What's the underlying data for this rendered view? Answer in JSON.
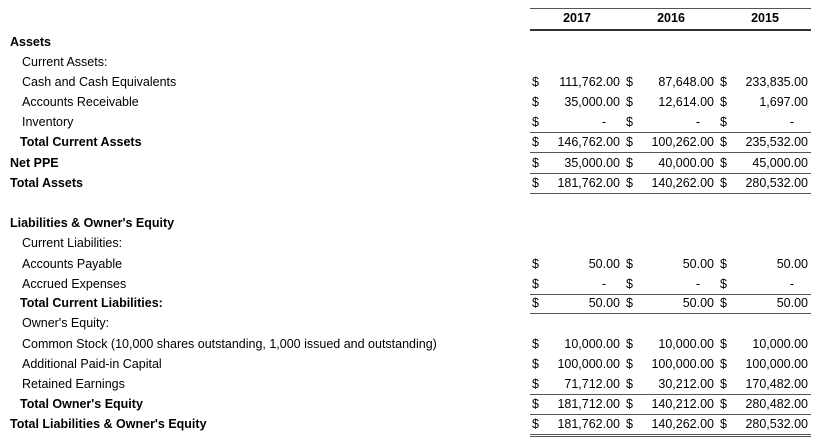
{
  "currency_symbol": "$",
  "columns": [
    "2017",
    "2016",
    "2015"
  ],
  "rows": [
    {
      "label": "Assets",
      "values": null
    },
    {
      "label": "Current Assets:",
      "values": null
    },
    {
      "label": "Cash and Cash Equivalents",
      "values": [
        "111,762.00",
        "87,648.00",
        "233,835.00"
      ]
    },
    {
      "label": "Accounts Receivable",
      "values": [
        "35,000.00",
        "12,614.00",
        "1,697.00"
      ]
    },
    {
      "label": "Inventory",
      "values": [
        "-",
        "-",
        "-"
      ]
    },
    {
      "label": "Total Current Assets",
      "values": [
        "146,762.00",
        "100,262.00",
        "235,532.00"
      ]
    },
    {
      "label": "Net PPE",
      "values": [
        "35,000.00",
        "40,000.00",
        "45,000.00"
      ]
    },
    {
      "label": "Total Assets",
      "values": [
        "181,762.00",
        "140,262.00",
        "280,532.00"
      ]
    },
    {
      "label": "Liabilities & Owner's Equity",
      "values": null
    },
    {
      "label": "Current Liabilities:",
      "values": null
    },
    {
      "label": "Accounts Payable",
      "values": [
        "50.00",
        "50.00",
        "50.00"
      ]
    },
    {
      "label": "Accrued Expenses",
      "values": [
        "-",
        "-",
        "-"
      ]
    },
    {
      "label": "Total Current Liabilities:",
      "values": [
        "50.00",
        "50.00",
        "50.00"
      ]
    },
    {
      "label": "Owner's Equity:",
      "values": null
    },
    {
      "label": "Common Stock (10,000 shares outstanding, 1,000 issued and outstanding)",
      "values": [
        "10,000.00",
        "10,000.00",
        "10,000.00"
      ]
    },
    {
      "label": "Additional Paid-in Capital",
      "values": [
        "100,000.00",
        "100,000.00",
        "100,000.00"
      ]
    },
    {
      "label": "Retained Earnings",
      "values": [
        "71,712.00",
        "30,212.00",
        "170,482.00"
      ]
    },
    {
      "label": "Total Owner's Equity",
      "values": [
        "181,712.00",
        "140,212.00",
        "280,482.00"
      ]
    },
    {
      "label": "Total Liabilities & Owner's Equity",
      "values": [
        "181,762.00",
        "140,262.00",
        "280,532.00"
      ]
    }
  ]
}
